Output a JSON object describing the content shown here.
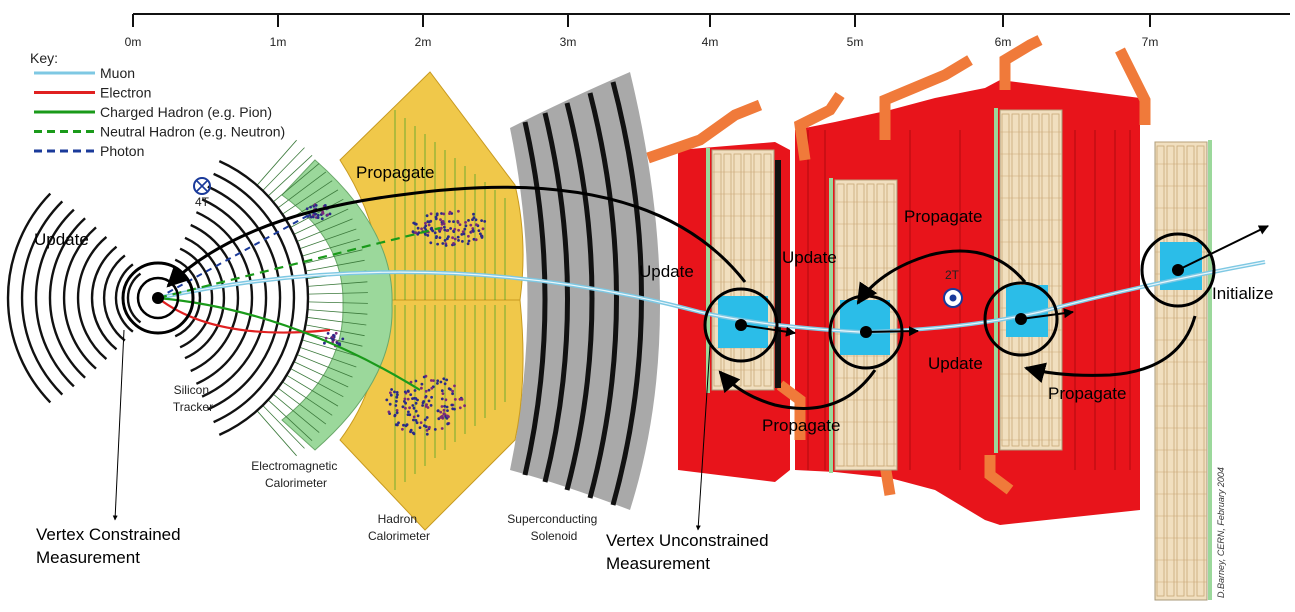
{
  "scale": {
    "ticks": [
      "0m",
      "1m",
      "2m",
      "3m",
      "4m",
      "5m",
      "6m",
      "7m"
    ]
  },
  "key": {
    "title": "Key:",
    "items": [
      {
        "label": "Muon",
        "color": "#7ec8e3",
        "style": "solid"
      },
      {
        "label": "Electron",
        "color": "#e02020",
        "style": "solid"
      },
      {
        "label": "Charged Hadron (e.g. Pion)",
        "color": "#1a9a1a",
        "style": "solid"
      },
      {
        "label": "Neutral Hadron (e.g. Neutron)",
        "color": "#1a9a1a",
        "style": "dashed"
      },
      {
        "label": "Photon",
        "color": "#1a3a9a",
        "style": "dashed"
      }
    ]
  },
  "field": {
    "inner": "4T",
    "outer": "2T"
  },
  "detectors": {
    "silicon": [
      "Silicon",
      "Tracker"
    ],
    "ecal": [
      "Electromagnetic",
      "Calorimeter"
    ],
    "hcal": [
      "Hadron",
      "Calorimeter"
    ],
    "solenoid": [
      "Superconducting",
      "Solenoid"
    ]
  },
  "annotations": {
    "update_left": "Update",
    "propagate_top": "Propagate",
    "update_mid1": "Update",
    "update_mid2": "Update",
    "propagate_right_top": "Propagate",
    "update_right": "Update",
    "propagate_right_bottom": "Propagate",
    "propagate_bottom": "Propagate",
    "initialize": "Initialize",
    "vertex_constrained": [
      "Vertex Constrained",
      "Measurement"
    ],
    "vertex_unconstrained": [
      "Vertex Unconstrained",
      "Measurement"
    ]
  },
  "credit": "D.Barney, CERN, February 2004",
  "colors": {
    "yoke": "#e8141b",
    "calorimeter": "#f0c84a",
    "tracker": "#9bd89b",
    "solenoid": "#a9a9a9",
    "chamber": "#f1dfbf",
    "hit": "#2bbde8"
  }
}
